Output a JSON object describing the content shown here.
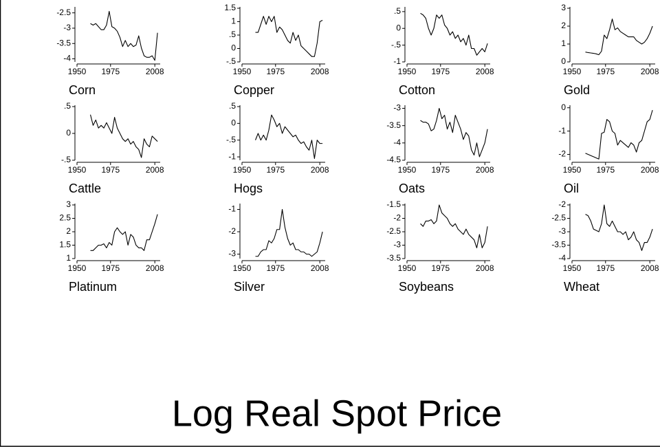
{
  "title": "Log Real Spot Price",
  "chart_data": [
    {
      "type": "line",
      "title": "Corn",
      "x": [
        1960,
        1962,
        1964,
        1966,
        1968,
        1970,
        1972,
        1974,
        1976,
        1978,
        1980,
        1982,
        1984,
        1986,
        1988,
        1990,
        1992,
        1994,
        1996,
        1998,
        2000,
        2002,
        2004,
        2006,
        2008,
        2010
      ],
      "values": [
        -2.85,
        -2.9,
        -2.85,
        -2.95,
        -3.05,
        -3.05,
        -2.9,
        -2.45,
        -2.95,
        -3.0,
        -3.1,
        -3.3,
        -3.6,
        -3.4,
        -3.6,
        -3.5,
        -3.6,
        -3.55,
        -3.25,
        -3.65,
        -3.9,
        -3.95,
        -3.95,
        -3.9,
        -4.05,
        -3.15
      ],
      "color": "#000000",
      "xlim": [
        1950,
        2012
      ],
      "xticks": [
        1950,
        1975,
        2008
      ],
      "ylim": [
        -4.1,
        -2.35
      ],
      "yticks": [
        -2.5,
        -3,
        -3.5,
        -4
      ]
    },
    {
      "type": "line",
      "title": "Copper",
      "x": [
        1960,
        1962,
        1964,
        1966,
        1968,
        1970,
        1972,
        1974,
        1976,
        1978,
        1980,
        1982,
        1984,
        1986,
        1988,
        1990,
        1992,
        1994,
        1996,
        1998,
        2000,
        2002,
        2004,
        2006,
        2008,
        2010
      ],
      "values": [
        0.6,
        0.6,
        0.9,
        1.2,
        0.9,
        1.2,
        1.0,
        1.2,
        0.6,
        0.8,
        0.7,
        0.5,
        0.3,
        0.2,
        0.6,
        0.3,
        0.5,
        0.1,
        0.0,
        -0.1,
        -0.2,
        -0.3,
        -0.3,
        0.2,
        1.0,
        1.05
      ],
      "color": "#000000",
      "xlim": [
        1950,
        2012
      ],
      "xticks": [
        1950,
        1975,
        2008
      ],
      "ylim": [
        -0.5,
        1.5
      ],
      "yticks": [
        1.5,
        1,
        {
          "value": 0.5,
          "label": ".5"
        },
        0,
        {
          "value": -0.5,
          "label": "-.5"
        }
      ]
    },
    {
      "type": "line",
      "title": "Cotton",
      "x": [
        1960,
        1962,
        1964,
        1966,
        1968,
        1970,
        1972,
        1974,
        1976,
        1978,
        1980,
        1982,
        1984,
        1986,
        1988,
        1990,
        1992,
        1994,
        1996,
        1998,
        2000,
        2002,
        2004,
        2006,
        2008,
        2010
      ],
      "values": [
        0.45,
        0.4,
        0.3,
        0.0,
        -0.2,
        0.0,
        0.4,
        0.3,
        0.4,
        0.1,
        0.0,
        -0.2,
        -0.1,
        -0.3,
        -0.2,
        -0.4,
        -0.3,
        -0.5,
        -0.2,
        -0.6,
        -0.6,
        -0.8,
        -0.7,
        -0.6,
        -0.7,
        -0.45
      ],
      "color": "#000000",
      "xlim": [
        1950,
        2012
      ],
      "xticks": [
        1950,
        1975,
        2008
      ],
      "ylim": [
        -1,
        0.6
      ],
      "yticks": [
        {
          "value": 0.5,
          "label": ".5"
        },
        0,
        {
          "value": -0.5,
          "label": "-.5"
        },
        -1
      ]
    },
    {
      "type": "line",
      "title": "Gold",
      "x": [
        1960,
        1962,
        1964,
        1966,
        1968,
        1970,
        1972,
        1974,
        1976,
        1978,
        1980,
        1982,
        1984,
        1986,
        1988,
        1990,
        1992,
        1994,
        1996,
        1998,
        2000,
        2002,
        2004,
        2006,
        2008,
        2010
      ],
      "values": [
        0.55,
        0.52,
        0.5,
        0.48,
        0.45,
        0.4,
        0.6,
        1.5,
        1.3,
        1.8,
        2.4,
        1.8,
        1.9,
        1.7,
        1.6,
        1.5,
        1.4,
        1.4,
        1.4,
        1.2,
        1.1,
        1.0,
        1.1,
        1.3,
        1.6,
        2.0
      ],
      "color": "#000000",
      "xlim": [
        1950,
        2012
      ],
      "xticks": [
        1950,
        1975,
        2008
      ],
      "ylim": [
        0,
        3
      ],
      "yticks": [
        3,
        2,
        1,
        0
      ]
    },
    {
      "type": "line",
      "title": "Cattle",
      "x": [
        1960,
        1962,
        1964,
        1966,
        1968,
        1970,
        1972,
        1974,
        1976,
        1978,
        1980,
        1982,
        1984,
        1986,
        1988,
        1990,
        1992,
        1994,
        1996,
        1998,
        2000,
        2002,
        2004,
        2006,
        2008,
        2010
      ],
      "values": [
        0.35,
        0.15,
        0.25,
        0.1,
        0.15,
        0.1,
        0.2,
        0.1,
        0.0,
        0.3,
        0.1,
        0.0,
        -0.1,
        -0.15,
        -0.1,
        -0.2,
        -0.15,
        -0.25,
        -0.3,
        -0.45,
        -0.1,
        -0.2,
        -0.25,
        -0.05,
        -0.1,
        -0.15
      ],
      "color": "#000000",
      "xlim": [
        1950,
        2012
      ],
      "xticks": [
        1950,
        1975,
        2008
      ],
      "ylim": [
        -0.5,
        0.5
      ],
      "yticks": [
        {
          "value": 0.5,
          "label": ".5"
        },
        0,
        {
          "value": -0.5,
          "label": "-.5"
        }
      ]
    },
    {
      "type": "line",
      "title": "Hogs",
      "x": [
        1960,
        1962,
        1964,
        1966,
        1968,
        1970,
        1972,
        1974,
        1976,
        1978,
        1980,
        1982,
        1984,
        1986,
        1988,
        1990,
        1992,
        1994,
        1996,
        1998,
        2000,
        2002,
        2004,
        2006,
        2008,
        2010
      ],
      "values": [
        -0.5,
        -0.3,
        -0.5,
        -0.35,
        -0.5,
        -0.2,
        0.25,
        0.1,
        -0.1,
        0.0,
        -0.3,
        -0.1,
        -0.2,
        -0.3,
        -0.4,
        -0.35,
        -0.5,
        -0.6,
        -0.55,
        -0.7,
        -0.8,
        -0.5,
        -1.05,
        -0.5,
        -0.6,
        -0.6
      ],
      "color": "#000000",
      "xlim": [
        1950,
        2012
      ],
      "xticks": [
        1950,
        1975,
        2008
      ],
      "ylim": [
        -1.1,
        0.5
      ],
      "yticks": [
        {
          "value": 0.5,
          "label": ".5"
        },
        0,
        {
          "value": -0.5,
          "label": "-.5"
        },
        -1
      ]
    },
    {
      "type": "line",
      "title": "Oats",
      "x": [
        1960,
        1962,
        1964,
        1966,
        1968,
        1970,
        1972,
        1974,
        1976,
        1978,
        1980,
        1982,
        1984,
        1986,
        1988,
        1990,
        1992,
        1994,
        1996,
        1998,
        2000,
        2002,
        2004,
        2006,
        2008,
        2010
      ],
      "values": [
        -3.35,
        -3.4,
        -3.4,
        -3.45,
        -3.65,
        -3.6,
        -3.35,
        -3.0,
        -3.3,
        -3.2,
        -3.6,
        -3.4,
        -3.7,
        -3.2,
        -3.4,
        -3.6,
        -3.9,
        -3.7,
        -3.8,
        -4.2,
        -4.35,
        -4.0,
        -4.4,
        -4.2,
        -4.0,
        -3.6
      ],
      "color": "#000000",
      "xlim": [
        1950,
        2012
      ],
      "xticks": [
        1950,
        1975,
        2008
      ],
      "ylim": [
        -4.5,
        -2.95
      ],
      "yticks": [
        -3,
        -3.5,
        -4,
        -4.5
      ]
    },
    {
      "type": "line",
      "title": "Oil",
      "x": [
        1960,
        1962,
        1964,
        1966,
        1968,
        1970,
        1972,
        1974,
        1976,
        1978,
        1980,
        1982,
        1984,
        1986,
        1988,
        1990,
        1992,
        1994,
        1996,
        1998,
        2000,
        2002,
        2004,
        2006,
        2008,
        2010
      ],
      "values": [
        -1.95,
        -2.0,
        -2.05,
        -2.1,
        -2.15,
        -2.2,
        -1.1,
        -1.05,
        -0.5,
        -0.6,
        -1.0,
        -1.1,
        -1.6,
        -1.4,
        -1.5,
        -1.6,
        -1.7,
        -1.5,
        -1.6,
        -1.9,
        -1.5,
        -1.4,
        -1.0,
        -0.6,
        -0.5,
        -0.1
      ],
      "color": "#000000",
      "xlim": [
        1950,
        2012
      ],
      "xticks": [
        1950,
        1975,
        2008
      ],
      "ylim": [
        -2.25,
        0.05
      ],
      "yticks": [
        0,
        -1,
        -2
      ]
    },
    {
      "type": "line",
      "title": "Platinum",
      "x": [
        1960,
        1962,
        1964,
        1966,
        1968,
        1970,
        1972,
        1974,
        1976,
        1978,
        1980,
        1982,
        1984,
        1986,
        1988,
        1990,
        1992,
        1994,
        1996,
        1998,
        2000,
        2002,
        2004,
        2006,
        2008,
        2010
      ],
      "values": [
        1.3,
        1.3,
        1.4,
        1.5,
        1.5,
        1.55,
        1.4,
        1.6,
        1.5,
        2.0,
        2.15,
        2.0,
        1.9,
        2.0,
        1.5,
        1.9,
        1.8,
        1.5,
        1.4,
        1.4,
        1.3,
        1.7,
        1.7,
        2.0,
        2.3,
        2.65
      ],
      "color": "#000000",
      "xlim": [
        1950,
        2012
      ],
      "xticks": [
        1950,
        1975,
        2008
      ],
      "ylim": [
        1,
        3
      ],
      "yticks": [
        3,
        2.5,
        2,
        1.5,
        1
      ]
    },
    {
      "type": "line",
      "title": "Silver",
      "x": [
        1960,
        1962,
        1964,
        1966,
        1968,
        1970,
        1972,
        1974,
        1976,
        1978,
        1980,
        1982,
        1984,
        1986,
        1988,
        1990,
        1992,
        1994,
        1996,
        1998,
        2000,
        2002,
        2004,
        2006,
        2008,
        2010
      ],
      "values": [
        -3.1,
        -3.1,
        -2.9,
        -2.8,
        -2.8,
        -2.4,
        -2.5,
        -2.3,
        -1.9,
        -1.9,
        -1.0,
        -1.8,
        -2.3,
        -2.6,
        -2.5,
        -2.8,
        -2.8,
        -2.9,
        -2.9,
        -3.0,
        -3.0,
        -3.1,
        -3.0,
        -2.9,
        -2.5,
        -2.0
      ],
      "color": "#000000",
      "xlim": [
        1950,
        2012
      ],
      "xticks": [
        1950,
        1975,
        2008
      ],
      "ylim": [
        -3.2,
        -0.8
      ],
      "yticks": [
        -1,
        -2,
        -3
      ]
    },
    {
      "type": "line",
      "title": "Soybeans",
      "x": [
        1960,
        1962,
        1964,
        1966,
        1968,
        1970,
        1972,
        1974,
        1976,
        1978,
        1980,
        1982,
        1984,
        1986,
        1988,
        1990,
        1992,
        1994,
        1996,
        1998,
        2000,
        2002,
        2004,
        2006,
        2008,
        2010
      ],
      "values": [
        -2.2,
        -2.3,
        -2.1,
        -2.1,
        -2.05,
        -2.2,
        -2.1,
        -1.5,
        -1.8,
        -1.9,
        -2.0,
        -2.2,
        -2.3,
        -2.2,
        -2.4,
        -2.5,
        -2.6,
        -2.4,
        -2.6,
        -2.7,
        -2.8,
        -3.1,
        -2.6,
        -3.1,
        -2.9,
        -2.3
      ],
      "color": "#000000",
      "xlim": [
        1950,
        2012
      ],
      "xticks": [
        1950,
        1975,
        2008
      ],
      "ylim": [
        -3.5,
        -1.5
      ],
      "yticks": [
        -1.5,
        -2,
        -2.5,
        -3,
        -3.5
      ]
    },
    {
      "type": "line",
      "title": "Wheat",
      "x": [
        1960,
        1962,
        1964,
        1966,
        1968,
        1970,
        1972,
        1974,
        1976,
        1978,
        1980,
        1982,
        1984,
        1986,
        1988,
        1990,
        1992,
        1994,
        1996,
        1998,
        2000,
        2002,
        2004,
        2006,
        2008,
        2010
      ],
      "values": [
        -2.35,
        -2.4,
        -2.6,
        -2.9,
        -2.95,
        -3.0,
        -2.7,
        -2.0,
        -2.7,
        -2.8,
        -2.6,
        -2.8,
        -3.0,
        -3.0,
        -3.1,
        -3.0,
        -3.3,
        -3.2,
        -3.0,
        -3.3,
        -3.4,
        -3.7,
        -3.4,
        -3.4,
        -3.2,
        -2.9
      ],
      "color": "#000000",
      "xlim": [
        1950,
        2012
      ],
      "xticks": [
        1950,
        1975,
        2008
      ],
      "ylim": [
        -4,
        -2
      ],
      "yticks": [
        -2,
        -2.5,
        -3,
        -3.5,
        -4
      ]
    }
  ]
}
